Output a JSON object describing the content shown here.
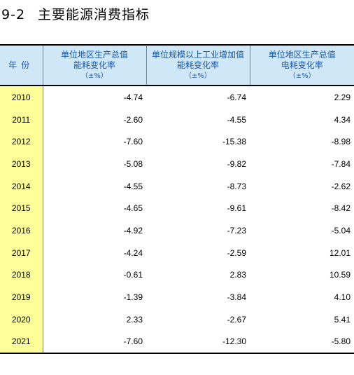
{
  "title": {
    "number": "9-2",
    "text": "主要能源消费指标"
  },
  "columns": {
    "year": "年份",
    "col1": {
      "line1": "单位地区生产总值",
      "line2": "能耗变化率",
      "unit": "（±%）"
    },
    "col2": {
      "line1": "单位规模以上工业增加值",
      "line2": "能耗变化率",
      "unit": "（±%）"
    },
    "col3": {
      "line1": "单位地区生产总值",
      "line2": "电耗变化率",
      "unit": "（±%）"
    }
  },
  "rows": [
    {
      "year": "2010",
      "v1": "-4.74",
      "v2": "-6.74",
      "v3": "2.29"
    },
    {
      "year": "2011",
      "v1": "-2.60",
      "v2": "-4.55",
      "v3": "4.34"
    },
    {
      "year": "2012",
      "v1": "-7.60",
      "v2": "-15.38",
      "v3": "-8.98"
    },
    {
      "year": "2013",
      "v1": "-5.08",
      "v2": "-9.82",
      "v3": "-7.84"
    },
    {
      "year": "2014",
      "v1": "-4.55",
      "v2": "-8.73",
      "v3": "-2.62"
    },
    {
      "year": "2015",
      "v1": "-4.65",
      "v2": "-9.61",
      "v3": "-8.42"
    },
    {
      "year": "2016",
      "v1": "-4.92",
      "v2": "-7.23",
      "v3": "-5.04"
    },
    {
      "year": "2017",
      "v1": "-4.24",
      "v2": "-2.59",
      "v3": "12.01"
    },
    {
      "year": "2018",
      "v1": "-0.61",
      "v2": "2.83",
      "v3": "10.59"
    },
    {
      "year": "2019",
      "v1": "-1.39",
      "v2": "-3.84",
      "v3": "4.10"
    },
    {
      "year": "2020",
      "v1": "2.33",
      "v2": "-2.67",
      "v3": "5.41"
    },
    {
      "year": "2021",
      "v1": "-7.60",
      "v2": "-12.30",
      "v3": "-5.80"
    }
  ]
}
